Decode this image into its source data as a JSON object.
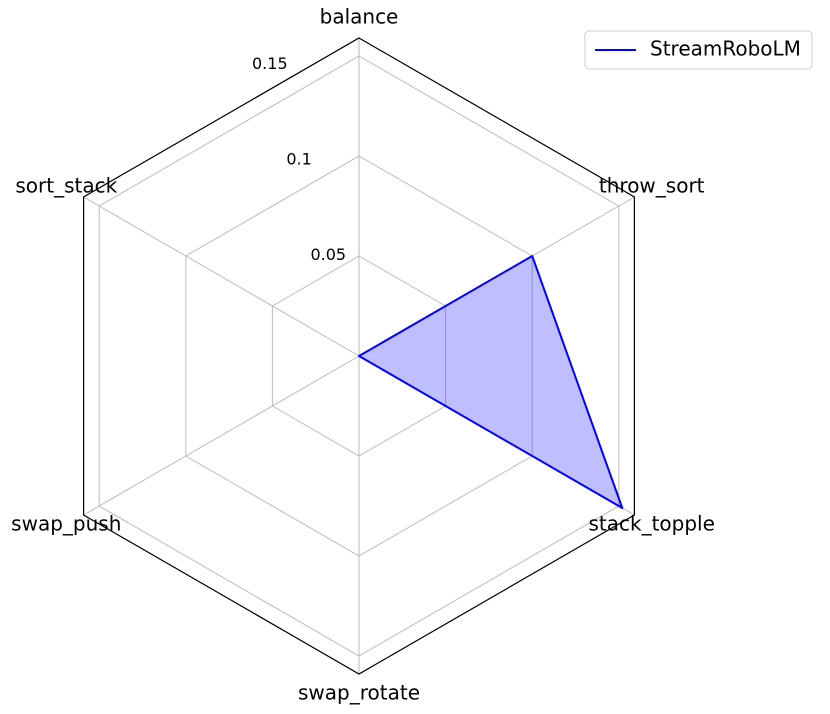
{
  "chart_data": {
    "type": "radar",
    "categories": [
      "balance",
      "throw_sort",
      "stack_topple",
      "swap_rotate",
      "swap_push",
      "sort_stack"
    ],
    "series": [
      {
        "name": "StreamRoboLM",
        "color": "#0000ff",
        "values": [
          0,
          0.1,
          0.152,
          0,
          0,
          0
        ]
      }
    ],
    "ylim": [
      0,
      0.159
    ],
    "yticks": [
      0.05,
      0.1,
      0.15
    ],
    "grid": true,
    "legend": "upper right"
  }
}
